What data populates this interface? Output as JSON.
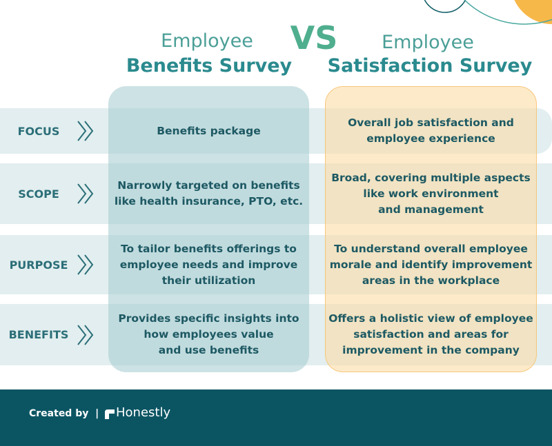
{
  "header": {
    "left_title": [
      "Employee",
      "Benefits Survey"
    ],
    "vs": "VS",
    "right_title": [
      "Employee",
      "Satisfaction Survey"
    ]
  },
  "rows": [
    {
      "label": "FOCUS",
      "left": [
        "Benefits package"
      ],
      "right": [
        "Overall job satisfaction and",
        "employee experience"
      ]
    },
    {
      "label": "SCOPE",
      "left": [
        "Narrowly targeted on benefits",
        "like health insurance, PTO, etc."
      ],
      "right": [
        "Broad, covering multiple aspects",
        "like work environment",
        "and management"
      ]
    },
    {
      "label": "PURPOSE",
      "left": [
        "To tailor benefits offerings to",
        "employee needs and improve",
        "their utilization"
      ],
      "right": [
        "To understand overall employee",
        "morale and identify improvement",
        "areas in the workplace"
      ]
    },
    {
      "label": "BENEFITS",
      "left": [
        "Provides specific insights into",
        "how employees value",
        "and use benefits"
      ],
      "right": [
        "Offers a holistic view of employee",
        "satisfaction and areas for",
        "improvement in the company"
      ]
    }
  ],
  "footer": {
    "created_by": "Created by  |",
    "brand": "Honestly"
  }
}
